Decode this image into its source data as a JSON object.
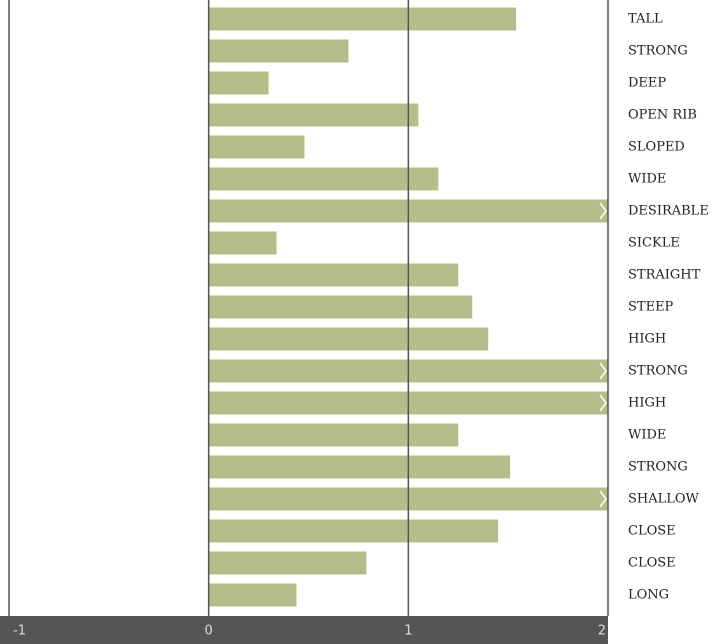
{
  "chart_data": {
    "type": "barh",
    "categories": [
      "TALL",
      "STRONG",
      "DEEP",
      "OPEN RIB",
      "SLOPED",
      "WIDE",
      "DESIRABLE",
      "SICKLE",
      "STRAIGHT",
      "STEEP",
      "HIGH",
      "STRONG",
      "HIGH",
      "WIDE",
      "STRONG",
      "SHALLOW",
      "CLOSE",
      "CLOSE",
      "LONG"
    ],
    "values": [
      1.54,
      0.7,
      0.3,
      1.05,
      0.48,
      1.15,
      2.2,
      0.34,
      1.25,
      1.32,
      1.4,
      2.2,
      2.2,
      1.25,
      1.51,
      2.2,
      1.45,
      0.79,
      0.44
    ],
    "color": "#b5bd8a",
    "xlim": [
      -1,
      2
    ],
    "xticks": [
      -1,
      0,
      1,
      2
    ],
    "grid": true
  }
}
